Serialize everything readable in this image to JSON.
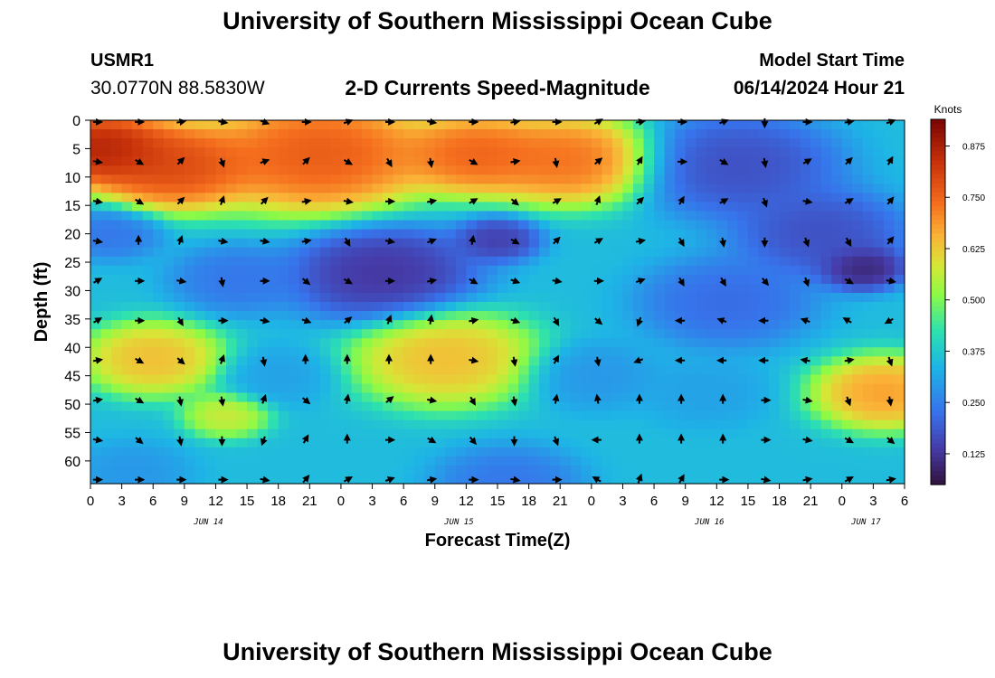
{
  "header": {
    "title": "University of Southern Mississippi Ocean Cube",
    "station": "USMR1",
    "coords": "30.0770N  88.5830W",
    "subtitle": "2-D Currents Speed-Magnitude",
    "model_start_label": "Model Start Time",
    "model_start_value": "06/14/2024 Hour 21"
  },
  "footer": {
    "title": "University of Southern Mississippi Ocean Cube"
  },
  "chart_data": {
    "type": "heatmap",
    "xlabel": "Forecast Time(Z)",
    "ylabel": "Depth (ft)",
    "colorbar_label": "Knots",
    "x_range_hours": [
      0,
      78
    ],
    "x_ticks": [
      {
        "h": 0,
        "label": "0"
      },
      {
        "h": 3,
        "label": "3"
      },
      {
        "h": 6,
        "label": "6"
      },
      {
        "h": 9,
        "label": "9"
      },
      {
        "h": 12,
        "label": "12"
      },
      {
        "h": 15,
        "label": "15"
      },
      {
        "h": 18,
        "label": "18"
      },
      {
        "h": 21,
        "label": "21"
      },
      {
        "h": 24,
        "label": "0"
      },
      {
        "h": 27,
        "label": "3"
      },
      {
        "h": 30,
        "label": "6"
      },
      {
        "h": 33,
        "label": "9"
      },
      {
        "h": 36,
        "label": "12"
      },
      {
        "h": 39,
        "label": "15"
      },
      {
        "h": 42,
        "label": "18"
      },
      {
        "h": 45,
        "label": "21"
      },
      {
        "h": 48,
        "label": "0"
      },
      {
        "h": 51,
        "label": "3"
      },
      {
        "h": 54,
        "label": "6"
      },
      {
        "h": 57,
        "label": "9"
      },
      {
        "h": 60,
        "label": "12"
      },
      {
        "h": 63,
        "label": "15"
      },
      {
        "h": 66,
        "label": "18"
      },
      {
        "h": 69,
        "label": "21"
      },
      {
        "h": 72,
        "label": "0"
      },
      {
        "h": 75,
        "label": "3"
      },
      {
        "h": 78,
        "label": "6"
      }
    ],
    "date_labels": [
      {
        "h": 12,
        "label": "JUN 14"
      },
      {
        "h": 36,
        "label": "JUN 15"
      },
      {
        "h": 60,
        "label": "JUN 16"
      },
      {
        "h": 75,
        "label": "JUN 17"
      }
    ],
    "y_range_ft": [
      0,
      64
    ],
    "y_ticks": [
      0,
      5,
      10,
      15,
      20,
      25,
      30,
      35,
      40,
      45,
      50,
      55,
      60
    ],
    "colorbar_range": [
      0.05,
      0.94
    ],
    "colorbar_ticks": [
      "0.125",
      "0.250",
      "0.375",
      "0.500",
      "0.625",
      "0.750",
      "0.875"
    ],
    "speed_field": [
      {
        "h": 1,
        "d": 5,
        "v": 0.93,
        "s": 5.0
      },
      {
        "h": 8,
        "d": 8,
        "v": 0.85,
        "s": 6.0
      },
      {
        "h": 22,
        "d": 6,
        "v": 0.82,
        "s": 8.0
      },
      {
        "h": 37,
        "d": 6,
        "v": 0.8,
        "s": 5.5
      },
      {
        "h": 46,
        "d": 7,
        "v": 0.78,
        "s": 6.0
      },
      {
        "h": 62,
        "d": 8,
        "v": 0.15,
        "s": 7.0
      },
      {
        "h": 70,
        "d": 20,
        "v": 0.15,
        "s": 6.0
      },
      {
        "h": 2,
        "d": 20,
        "v": 0.22,
        "s": 3.5
      },
      {
        "h": 14,
        "d": 28,
        "v": 0.22,
        "s": 4.5
      },
      {
        "h": 28,
        "d": 27,
        "v": 0.1,
        "s": 6.5
      },
      {
        "h": 39,
        "d": 21,
        "v": 0.12,
        "s": 3.0
      },
      {
        "h": 61,
        "d": 32,
        "v": 0.2,
        "s": 6.0
      },
      {
        "h": 74,
        "d": 26,
        "v": 0.06,
        "s": 3.0
      },
      {
        "h": 6,
        "d": 42,
        "v": 0.68,
        "s": 5.0
      },
      {
        "h": 13,
        "d": 52,
        "v": 0.6,
        "s": 3.0
      },
      {
        "h": 34,
        "d": 42,
        "v": 0.68,
        "s": 6.5
      },
      {
        "h": 18,
        "d": 45,
        "v": 0.3,
        "s": 4.0
      },
      {
        "h": 48,
        "d": 45,
        "v": 0.28,
        "s": 4.5
      },
      {
        "h": 59,
        "d": 48,
        "v": 0.3,
        "s": 4.5
      },
      {
        "h": 76,
        "d": 48,
        "v": 0.72,
        "s": 5.0
      },
      {
        "h": 4,
        "d": 62,
        "v": 0.28,
        "s": 4.0
      },
      {
        "h": 40,
        "d": 64,
        "v": 0.22,
        "s": 5.0
      }
    ],
    "speed_background": 0.35,
    "speed_blend_sharpness": 2.2,
    "arrows": {
      "hours": [
        0,
        4,
        8,
        12,
        16,
        20,
        24,
        28,
        32,
        36,
        40,
        44,
        48,
        52,
        56,
        60,
        64,
        68,
        72,
        76
      ],
      "depths": [
        0,
        7,
        14,
        21,
        28,
        35,
        42,
        49,
        56,
        63
      ],
      "directions_deg": [
        [
          90,
          90,
          80,
          100,
          110,
          90,
          70,
          90,
          100,
          90,
          80,
          90,
          60,
          80,
          90,
          70,
          180,
          90,
          80,
          70
        ],
        [
          100,
          120,
          45,
          160,
          70,
          45,
          120,
          150,
          170,
          120,
          80,
          170,
          50,
          30,
          90,
          120,
          170,
          60,
          45,
          30
        ],
        [
          100,
          120,
          45,
          20,
          45,
          80,
          100,
          90,
          80,
          60,
          130,
          60,
          20,
          45,
          30,
          60,
          160,
          100,
          60,
          40
        ],
        [
          100,
          0,
          20,
          100,
          100,
          80,
          150,
          100,
          70,
          10,
          120,
          45,
          60,
          80,
          150,
          170,
          180,
          160,
          150,
          40
        ],
        [
          60,
          90,
          100,
          170,
          90,
          130,
          120,
          90,
          80,
          120,
          110,
          100,
          90,
          70,
          150,
          150,
          140,
          160,
          120,
          100
        ],
        [
          60,
          90,
          150,
          90,
          100,
          110,
          50,
          20,
          10,
          80,
          110,
          150,
          130,
          200,
          270,
          290,
          270,
          290,
          300,
          240
        ],
        [
          80,
          120,
          130,
          20,
          170,
          0,
          0,
          0,
          0,
          100,
          170,
          30,
          170,
          250,
          270,
          270,
          270,
          280,
          80,
          160
        ],
        [
          80,
          120,
          170,
          170,
          20,
          130,
          10,
          50,
          100,
          150,
          170,
          10,
          350,
          0,
          0,
          0,
          90,
          100,
          160,
          170
        ],
        [
          100,
          130,
          170,
          180,
          200,
          30,
          0,
          90,
          120,
          140,
          180,
          160,
          270,
          0,
          0,
          0,
          90,
          100,
          120,
          130
        ],
        [
          90,
          90,
          90,
          90,
          100,
          40,
          60,
          70,
          80,
          90,
          100,
          90,
          300,
          20,
          30,
          90,
          100,
          80,
          60,
          80
        ]
      ]
    }
  }
}
